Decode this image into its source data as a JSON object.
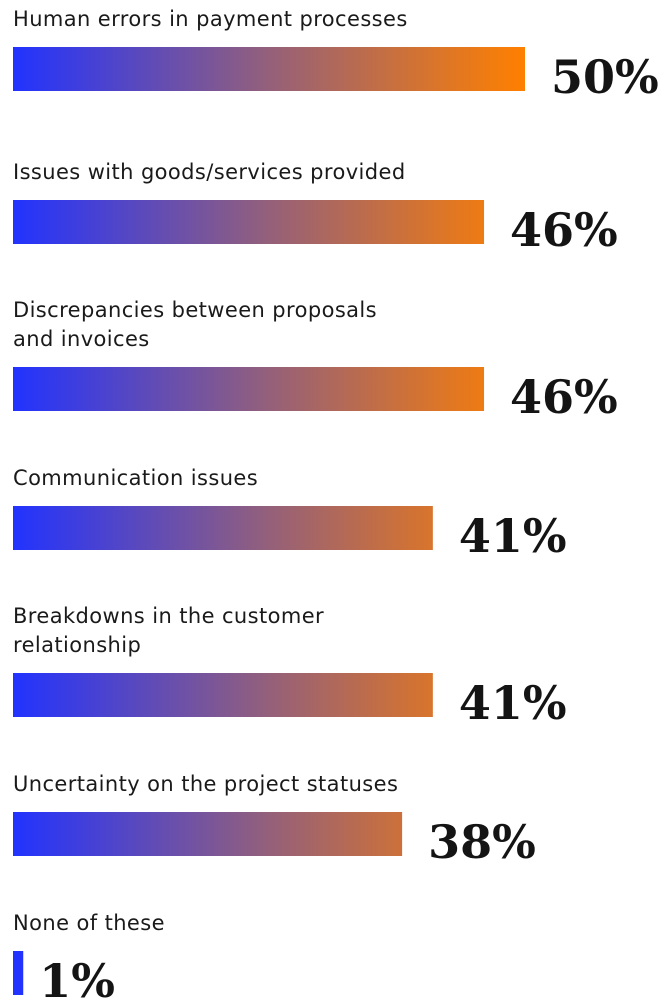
{
  "chart_data": {
    "type": "bar",
    "orientation": "horizontal",
    "title": "",
    "xlabel": "",
    "ylabel": "",
    "xlim": [
      0,
      50
    ],
    "grid": false,
    "legend": "none",
    "colors": {
      "bar_start": "#2233ff",
      "bar_end": "#ff8000"
    },
    "categories": [
      [
        "Human errors in payment processes"
      ],
      [
        "Issues with goods/services provided"
      ],
      [
        "Discrepancies between proposals",
        "and invoices"
      ],
      [
        "Communication issues"
      ],
      [
        "Breakdowns in the customer",
        "relationship"
      ],
      [
        "Uncertainty on the project statuses"
      ],
      [
        "None of these"
      ]
    ],
    "values": [
      50,
      46,
      46,
      41,
      41,
      38,
      1
    ],
    "value_labels": [
      "50%",
      "46%",
      "46%",
      "41%",
      "41%",
      "38%",
      "1%"
    ]
  }
}
